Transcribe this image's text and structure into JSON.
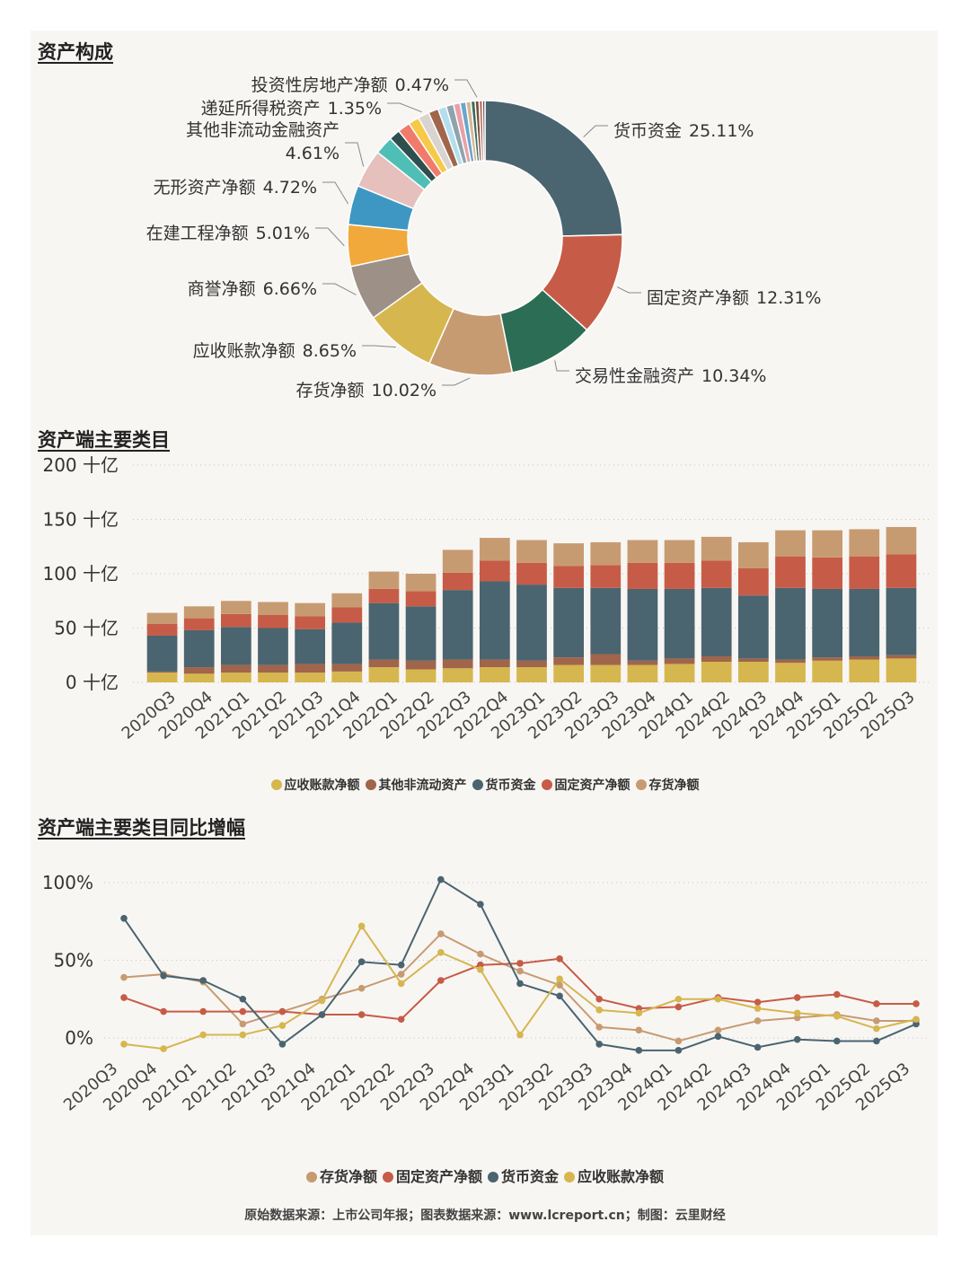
{
  "titles": {
    "composition": "资产构成",
    "main_items": "资产端主要类目",
    "yoy": "资产端主要类目同比增幅"
  },
  "footer": "原始数据来源：上市公司年报；图表数据来源：www.lcreport.cn；制图：云里财经",
  "colors": {
    "cash": "#4a6470",
    "fixed": "#c65c47",
    "trading": "#2b6e55",
    "inventory": "#c79b72",
    "receivable": "#d6b64f",
    "goodwill": "#9d9087",
    "construction": "#f2a93b",
    "intangible": "#3e97c2",
    "other_noncurrent": "#e6c0bd",
    "deferred_tax": "#4fbfb6",
    "investment_property": "#7a4d3a"
  },
  "chart_data": [
    {
      "type": "pie",
      "title": "资产构成",
      "slices": [
        {
          "label": "货币资金",
          "pct_label": "25.11%",
          "value": 25.11,
          "color": "#4a6470"
        },
        {
          "label": "固定资产净额",
          "pct_label": "12.31%",
          "value": 12.31,
          "color": "#c65c47"
        },
        {
          "label": "交易性金融资产",
          "pct_label": "10.34%",
          "value": 10.34,
          "color": "#2b6e55"
        },
        {
          "label": "存货净额",
          "pct_label": "10.02%",
          "value": 10.02,
          "color": "#c79b72"
        },
        {
          "label": "应收账款净额",
          "pct_label": "8.65%",
          "value": 8.65,
          "color": "#d6b64f"
        },
        {
          "label": "商誉净额",
          "pct_label": "6.66%",
          "value": 6.66,
          "color": "#9d9087"
        },
        {
          "label": "在建工程净额",
          "pct_label": "5.01%",
          "value": 5.01,
          "color": "#f2a93b"
        },
        {
          "label": "无形资产净额",
          "pct_label": "4.72%",
          "value": 4.72,
          "color": "#3e97c2"
        },
        {
          "label": "其他非流动金融资产",
          "pct_label": "4.61%",
          "value": 4.61,
          "color": "#e6c0bd"
        },
        {
          "label": "",
          "pct_label": "",
          "value": 2.2,
          "color": "#4fbfb6"
        },
        {
          "label": "",
          "pct_label": "",
          "value": 1.35,
          "color": "#2f4f4f"
        },
        {
          "label": "",
          "pct_label": "",
          "value": 1.5,
          "color": "#f07b6b"
        },
        {
          "label": "",
          "pct_label": "",
          "value": 1.3,
          "color": "#f7c948"
        },
        {
          "label": "递延所得税资产",
          "pct_label": "1.35%",
          "value": 1.35,
          "color": "#d9d4cf"
        },
        {
          "label": "",
          "pct_label": "",
          "value": 1.2,
          "color": "#a0654a"
        },
        {
          "label": "",
          "pct_label": "",
          "value": 1.0,
          "color": "#b2dfee"
        },
        {
          "label": "",
          "pct_label": "",
          "value": 0.9,
          "color": "#8fa3ad"
        },
        {
          "label": "",
          "pct_label": "",
          "value": 0.8,
          "color": "#e8a0a8"
        },
        {
          "label": "",
          "pct_label": "",
          "value": 0.7,
          "color": "#6ba5c9"
        },
        {
          "label": "",
          "pct_label": "",
          "value": 0.6,
          "color": "#d4b896"
        },
        {
          "label": "",
          "pct_label": "",
          "value": 0.5,
          "color": "#3f6b5b"
        },
        {
          "label": "投资性房地产净额",
          "pct_label": "0.47%",
          "value": 0.47,
          "color": "#7a4d3a"
        },
        {
          "label": "",
          "pct_label": "",
          "value": 0.4,
          "color": "#b86a5a"
        },
        {
          "label": "",
          "pct_label": "",
          "value": 0.3,
          "color": "#5a5a5a"
        }
      ]
    },
    {
      "type": "bar",
      "title": "资产端主要类目",
      "stacked": true,
      "categories": [
        "2020Q3",
        "2020Q4",
        "2021Q1",
        "2021Q2",
        "2021Q3",
        "2021Q4",
        "2022Q1",
        "2022Q2",
        "2022Q3",
        "2022Q4",
        "2023Q1",
        "2023Q2",
        "2023Q3",
        "2023Q4",
        "2024Q1",
        "2024Q2",
        "2024Q3",
        "2024Q4",
        "2025Q1",
        "2025Q2",
        "2025Q3"
      ],
      "y_ticks": [
        "0 十亿",
        "50 十亿",
        "100 十亿",
        "150 十亿",
        "200 十亿"
      ],
      "ylim": [
        0,
        200
      ],
      "series": [
        {
          "name": "应收账款净额",
          "color": "#d6b64f",
          "values": [
            9,
            8,
            9,
            9,
            9,
            10,
            14,
            12,
            13,
            14,
            14,
            16,
            16,
            16,
            17,
            19,
            19,
            18,
            20,
            21,
            22
          ]
        },
        {
          "name": "其他非流动资产",
          "color": "#a0654a",
          "values": [
            1,
            6,
            7,
            7,
            8,
            7,
            7,
            8,
            8,
            7,
            6,
            7,
            10,
            4,
            5,
            5,
            3,
            3,
            3,
            3,
            3
          ]
        },
        {
          "name": "货币资金",
          "color": "#4a6470",
          "values": [
            33,
            34,
            35,
            34,
            32,
            38,
            52,
            50,
            64,
            72,
            70,
            64,
            61,
            66,
            64,
            63,
            58,
            66,
            63,
            62,
            62
          ]
        },
        {
          "name": "固定资产净额",
          "color": "#c65c47",
          "values": [
            11,
            11,
            12,
            12,
            12,
            14,
            13,
            14,
            16,
            19,
            20,
            20,
            21,
            24,
            24,
            25,
            25,
            29,
            29,
            30,
            31
          ]
        },
        {
          "name": "存货净额",
          "color": "#c79b72",
          "values": [
            10,
            11,
            12,
            12,
            12,
            13,
            16,
            16,
            21,
            21,
            21,
            21,
            21,
            21,
            21,
            22,
            24,
            24,
            25,
            25,
            25
          ]
        }
      ]
    },
    {
      "type": "line",
      "title": "资产端主要类目同比增幅",
      "categories": [
        "2020Q3",
        "2020Q4",
        "2021Q1",
        "2021Q2",
        "2021Q3",
        "2021Q4",
        "2022Q1",
        "2022Q2",
        "2022Q3",
        "2022Q4",
        "2023Q1",
        "2023Q2",
        "2023Q3",
        "2023Q4",
        "2024Q1",
        "2024Q2",
        "2024Q3",
        "2024Q4",
        "2025Q1",
        "2025Q2",
        "2025Q3"
      ],
      "y_ticks": [
        "0%",
        "50%",
        "100%"
      ],
      "ylim": [
        -10,
        110
      ],
      "series": [
        {
          "name": "存货净额",
          "color": "#c79b72",
          "values": [
            39,
            41,
            36,
            9,
            17,
            25,
            32,
            41,
            67,
            54,
            43,
            34,
            7,
            5,
            -2,
            5,
            11,
            13,
            15,
            11,
            11
          ]
        },
        {
          "name": "固定资产净额",
          "color": "#c65c47",
          "values": [
            26,
            17,
            17,
            17,
            17,
            15,
            15,
            12,
            37,
            47,
            48,
            51,
            25,
            19,
            20,
            26,
            23,
            26,
            28,
            22,
            22
          ]
        },
        {
          "name": "货币资金",
          "color": "#4a6470",
          "values": [
            77,
            40,
            37,
            25,
            -4,
            15,
            49,
            47,
            102,
            86,
            35,
            27,
            -4,
            -8,
            -8,
            1,
            -6,
            -1,
            -2,
            -2,
            9
          ]
        },
        {
          "name": "应收账款净额",
          "color": "#d6b64f",
          "values": [
            -4,
            -7,
            2,
            2,
            8,
            24,
            72,
            35,
            55,
            44,
            2,
            38,
            18,
            16,
            25,
            25,
            19,
            16,
            14,
            6,
            12
          ]
        }
      ]
    }
  ]
}
